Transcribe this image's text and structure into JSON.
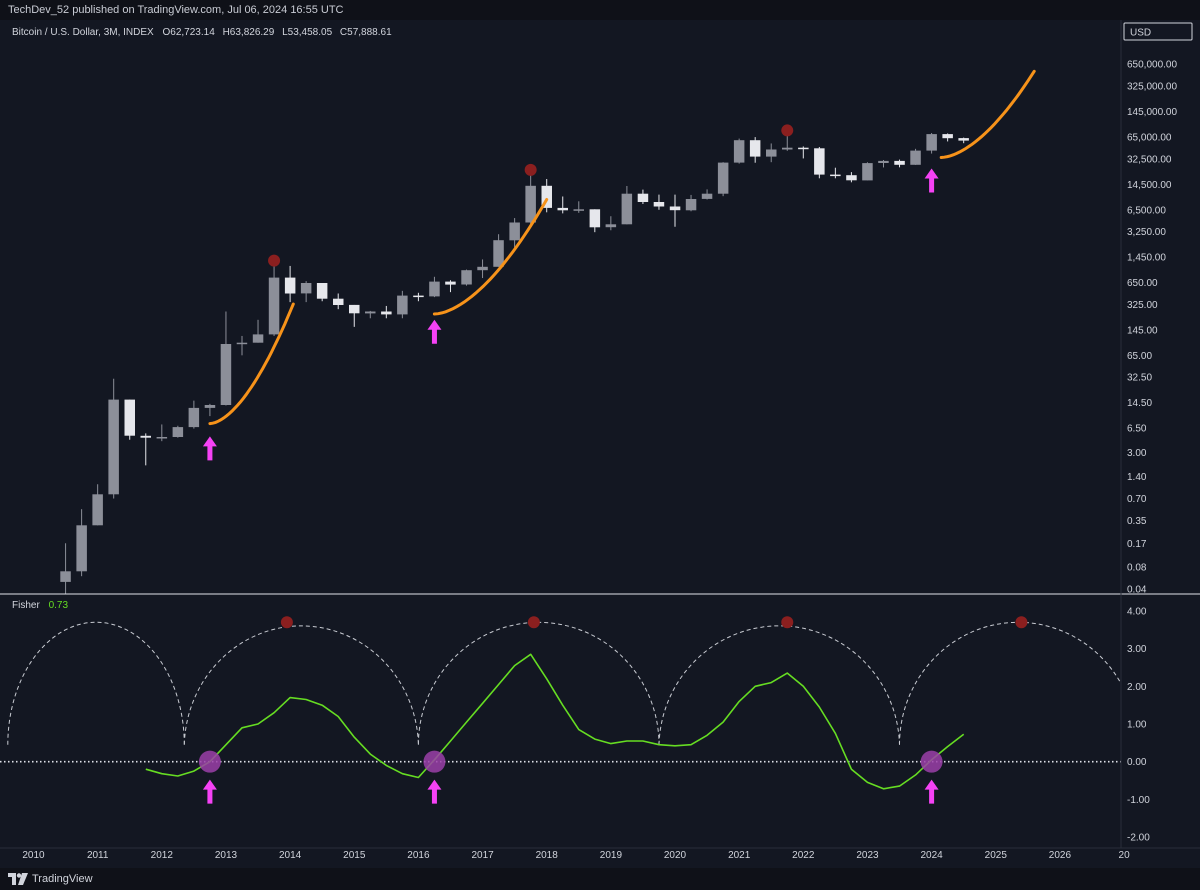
{
  "header": {
    "publisher_line": "TechDev_52 published on TradingView.com, Jul 06, 2024 16:55 UTC"
  },
  "symbol": {
    "name": "Bitcoin / U.S. Dollar, 3M, INDEX",
    "open_label": "O",
    "open": "62,723.14",
    "high_label": "H",
    "high": "63,826.29",
    "low_label": "L",
    "low": "53,458.05",
    "close_label": "C",
    "close": "57,888.61"
  },
  "currency": "USD",
  "indicator": {
    "name": "Fisher",
    "value": "0.73"
  },
  "footer": {
    "brand": "TradingView"
  },
  "colors": {
    "background": "#131722",
    "candle_up": "#8c8f99",
    "candle_down": "#e6e7ec",
    "projection": "#f7931a",
    "fisher_line": "#66dd22",
    "arrow": "#f542f5",
    "top_marker": "#8b1f1f",
    "bottom_marker": "#9b3fa8"
  },
  "chart_data": [
    {
      "type": "candlestick",
      "title": "Bitcoin / U.S. Dollar, 3M, INDEX",
      "yscale": "log",
      "price_ticks": [
        "650,000.00",
        "325,000.00",
        "145,000.00",
        "65,000.00",
        "32,500.00",
        "14,500.00",
        "6,500.00",
        "3,250.00",
        "1,450.00",
        "650.00",
        "325.00",
        "145.00",
        "65.00",
        "32.50",
        "14.50",
        "6.50",
        "3.00",
        "1.40",
        "0.70",
        "0.35",
        "0.17",
        "0.08",
        "0.04"
      ],
      "x_ticks": [
        "2010",
        "2011",
        "2012",
        "2013",
        "2014",
        "2015",
        "2016",
        "2017",
        "2018",
        "2019",
        "2020",
        "2021",
        "2022",
        "2023",
        "2024",
        "2025",
        "2026",
        "20"
      ],
      "candles": [
        {
          "t": 2010.5,
          "o": 0.05,
          "h": 0.17,
          "l": 0.03,
          "c": 0.07
        },
        {
          "t": 2010.75,
          "o": 0.07,
          "h": 0.5,
          "l": 0.06,
          "c": 0.3
        },
        {
          "t": 2011.0,
          "o": 0.3,
          "h": 1.1,
          "l": 0.3,
          "c": 0.8
        },
        {
          "t": 2011.25,
          "o": 0.8,
          "h": 31,
          "l": 0.7,
          "c": 16
        },
        {
          "t": 2011.5,
          "o": 16,
          "h": 16,
          "l": 4.5,
          "c": 5.1
        },
        {
          "t": 2011.75,
          "o": 5.1,
          "h": 5.5,
          "l": 2.0,
          "c": 4.8
        },
        {
          "t": 2012.0,
          "o": 4.8,
          "h": 7.3,
          "l": 4.3,
          "c": 4.9
        },
        {
          "t": 2012.25,
          "o": 4.9,
          "h": 7.0,
          "l": 4.8,
          "c": 6.7
        },
        {
          "t": 2012.5,
          "o": 6.7,
          "h": 15.5,
          "l": 6.4,
          "c": 12.3
        },
        {
          "t": 2012.75,
          "o": 12.3,
          "h": 14,
          "l": 9.5,
          "c": 13.5
        },
        {
          "t": 2013.0,
          "o": 13.5,
          "h": 260,
          "l": 13.3,
          "c": 93
        },
        {
          "t": 2013.25,
          "o": 93,
          "h": 120,
          "l": 65,
          "c": 97
        },
        {
          "t": 2013.5,
          "o": 97,
          "h": 200,
          "l": 97,
          "c": 126
        },
        {
          "t": 2013.75,
          "o": 126,
          "h": 1150,
          "l": 120,
          "c": 760
        },
        {
          "t": 2014.0,
          "o": 760,
          "h": 1100,
          "l": 350,
          "c": 460
        },
        {
          "t": 2014.25,
          "o": 460,
          "h": 680,
          "l": 350,
          "c": 640
        },
        {
          "t": 2014.5,
          "o": 640,
          "h": 640,
          "l": 360,
          "c": 390
        },
        {
          "t": 2014.75,
          "o": 390,
          "h": 460,
          "l": 280,
          "c": 320
        },
        {
          "t": 2015.0,
          "o": 320,
          "h": 320,
          "l": 160,
          "c": 245
        },
        {
          "t": 2015.25,
          "o": 245,
          "h": 265,
          "l": 210,
          "c": 260
        },
        {
          "t": 2015.5,
          "o": 260,
          "h": 310,
          "l": 210,
          "c": 237
        },
        {
          "t": 2015.75,
          "o": 237,
          "h": 500,
          "l": 210,
          "c": 430
        },
        {
          "t": 2016.0,
          "o": 430,
          "h": 470,
          "l": 360,
          "c": 420
        },
        {
          "t": 2016.25,
          "o": 420,
          "h": 780,
          "l": 410,
          "c": 670
        },
        {
          "t": 2016.5,
          "o": 670,
          "h": 700,
          "l": 480,
          "c": 610
        },
        {
          "t": 2016.75,
          "o": 610,
          "h": 980,
          "l": 590,
          "c": 960
        },
        {
          "t": 2017.0,
          "o": 960,
          "h": 1350,
          "l": 750,
          "c": 1070
        },
        {
          "t": 2017.25,
          "o": 1070,
          "h": 3000,
          "l": 1070,
          "c": 2480
        },
        {
          "t": 2017.5,
          "o": 2480,
          "h": 5000,
          "l": 1830,
          "c": 4350
        },
        {
          "t": 2017.75,
          "o": 4350,
          "h": 19700,
          "l": 4100,
          "c": 13900
        },
        {
          "t": 2018.0,
          "o": 13900,
          "h": 17200,
          "l": 6000,
          "c": 6900
        },
        {
          "t": 2018.25,
          "o": 6900,
          "h": 9900,
          "l": 5800,
          "c": 6400
        },
        {
          "t": 2018.5,
          "o": 6400,
          "h": 8500,
          "l": 5900,
          "c": 6600
        },
        {
          "t": 2018.75,
          "o": 6600,
          "h": 6600,
          "l": 3200,
          "c": 3740
        },
        {
          "t": 2019.0,
          "o": 3740,
          "h": 5300,
          "l": 3400,
          "c": 4100
        },
        {
          "t": 2019.25,
          "o": 4100,
          "h": 13800,
          "l": 4100,
          "c": 10800
        },
        {
          "t": 2019.5,
          "o": 10800,
          "h": 12300,
          "l": 7800,
          "c": 8300
        },
        {
          "t": 2019.75,
          "o": 8300,
          "h": 10500,
          "l": 6500,
          "c": 7200
        },
        {
          "t": 2020.0,
          "o": 7200,
          "h": 10500,
          "l": 3800,
          "c": 6400
        },
        {
          "t": 2020.25,
          "o": 6400,
          "h": 10400,
          "l": 6200,
          "c": 9150
        },
        {
          "t": 2020.5,
          "o": 9150,
          "h": 12400,
          "l": 9000,
          "c": 10800
        },
        {
          "t": 2020.75,
          "o": 10800,
          "h": 29300,
          "l": 10000,
          "c": 28900
        },
        {
          "t": 2021.0,
          "o": 28900,
          "h": 61800,
          "l": 28000,
          "c": 58800
        },
        {
          "t": 2021.25,
          "o": 58800,
          "h": 64800,
          "l": 28800,
          "c": 35000
        },
        {
          "t": 2021.5,
          "o": 35000,
          "h": 53000,
          "l": 29300,
          "c": 43800
        },
        {
          "t": 2021.75,
          "o": 43800,
          "h": 69000,
          "l": 42000,
          "c": 46300
        },
        {
          "t": 2022.0,
          "o": 46300,
          "h": 48200,
          "l": 33000,
          "c": 45500
        },
        {
          "t": 2022.25,
          "o": 45500,
          "h": 47400,
          "l": 17600,
          "c": 19800
        },
        {
          "t": 2022.5,
          "o": 19800,
          "h": 24600,
          "l": 17600,
          "c": 19400
        },
        {
          "t": 2022.75,
          "o": 19400,
          "h": 21400,
          "l": 15500,
          "c": 16500
        },
        {
          "t": 2023.0,
          "o": 16500,
          "h": 29200,
          "l": 16500,
          "c": 28500
        },
        {
          "t": 2023.25,
          "o": 28500,
          "h": 31400,
          "l": 24800,
          "c": 30500
        },
        {
          "t": 2023.5,
          "o": 30500,
          "h": 31800,
          "l": 24900,
          "c": 27000
        },
        {
          "t": 2023.75,
          "o": 27000,
          "h": 44700,
          "l": 26900,
          "c": 42300
        },
        {
          "t": 2024.0,
          "o": 42300,
          "h": 73800,
          "l": 38500,
          "c": 71300
        },
        {
          "t": 2024.25,
          "o": 71300,
          "h": 72800,
          "l": 56500,
          "c": 62700
        },
        {
          "t": 2024.5,
          "o": 62723.14,
          "h": 63826.29,
          "l": 53458.05,
          "c": 57888.61
        }
      ],
      "top_markers": [
        {
          "t": 2013.75,
          "price": 1300
        },
        {
          "t": 2017.75,
          "price": 23000
        },
        {
          "t": 2021.75,
          "price": 80000
        }
      ],
      "buy_arrows": [
        {
          "t": 2012.75,
          "price": 5.0
        },
        {
          "t": 2016.25,
          "price": 200
        },
        {
          "t": 2024.0,
          "price": 24000
        }
      ],
      "projection_curves": [
        {
          "t0": 2012.75,
          "p0": 7.5,
          "t1": 2014.05,
          "p1": 330
        },
        {
          "t0": 2016.25,
          "p0": 240,
          "t1": 2018.0,
          "p1": 9000
        },
        {
          "t0": 2024.15,
          "p0": 34000,
          "t1": 2025.6,
          "p1": 520000
        }
      ]
    },
    {
      "type": "line",
      "title": "Fisher",
      "ylim": [
        -2,
        4
      ],
      "y_ticks": [
        "4.00",
        "3.00",
        "2.00",
        "1.00",
        "0.00",
        "-1.00",
        "-2.00"
      ],
      "series": [
        {
          "name": "Fisher",
          "x": [
            2011.75,
            2012.0,
            2012.25,
            2012.5,
            2012.75,
            2013.0,
            2013.25,
            2013.5,
            2013.75,
            2014.0,
            2014.25,
            2014.5,
            2014.75,
            2015.0,
            2015.25,
            2015.5,
            2015.75,
            2016.0,
            2016.25,
            2016.5,
            2016.75,
            2017.0,
            2017.25,
            2017.5,
            2017.75,
            2018.0,
            2018.25,
            2018.5,
            2018.75,
            2019.0,
            2019.25,
            2019.5,
            2019.75,
            2020.0,
            2020.25,
            2020.5,
            2020.75,
            2021.0,
            2021.25,
            2021.5,
            2021.75,
            2022.0,
            2022.25,
            2022.5,
            2022.75,
            2023.0,
            2023.25,
            2023.5,
            2023.75,
            2024.0,
            2024.25,
            2024.5
          ],
          "values": [
            -0.2,
            -0.32,
            -0.38,
            -0.25,
            0.0,
            0.45,
            0.9,
            1.0,
            1.3,
            1.7,
            1.65,
            1.5,
            1.2,
            0.65,
            0.2,
            -0.1,
            -0.32,
            -0.42,
            0.05,
            0.55,
            1.05,
            1.55,
            2.05,
            2.55,
            2.85,
            2.2,
            1.5,
            0.85,
            0.6,
            0.48,
            0.55,
            0.55,
            0.45,
            0.42,
            0.45,
            0.7,
            1.05,
            1.6,
            2.0,
            2.1,
            2.35,
            2.0,
            1.45,
            0.75,
            -0.2,
            -0.55,
            -0.72,
            -0.65,
            -0.35,
            0.05,
            0.4,
            0.73
          ]
        }
      ],
      "zero_line": 0,
      "cycle_arcs": [
        {
          "t0": 2009.6,
          "t1": 2012.35,
          "peak": 3.7
        },
        {
          "t0": 2012.35,
          "t1": 2016.0,
          "peak": 3.7
        },
        {
          "t0": 2016.0,
          "t1": 2019.75,
          "peak": 3.7
        },
        {
          "t0": 2019.75,
          "t1": 2023.5,
          "peak": 3.7
        },
        {
          "t0": 2023.5,
          "t1": 2027.2,
          "peak": 3.7
        }
      ],
      "top_markers": [
        2013.95,
        2017.8,
        2021.75,
        2025.4
      ],
      "bottom_markers": [
        2012.75,
        2016.25,
        2024.0
      ]
    }
  ]
}
